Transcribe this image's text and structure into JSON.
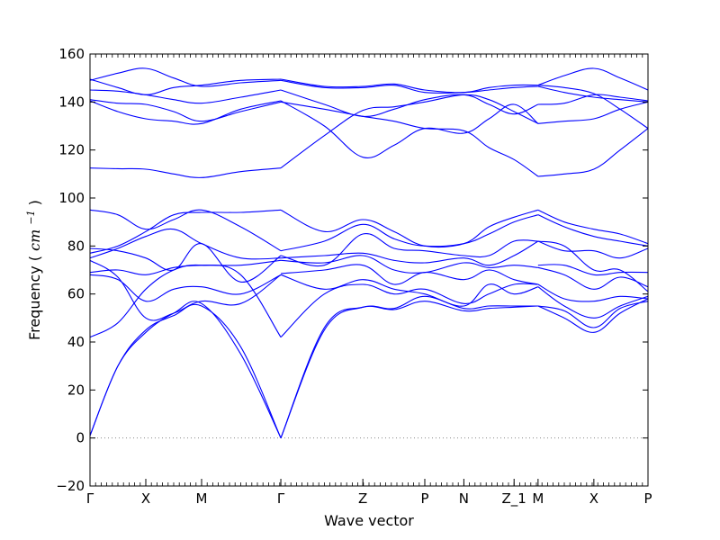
{
  "chart_data": {
    "type": "line",
    "title": "",
    "xlabel": "Wave vector",
    "ylabel": "Frequency",
    "ylabel_unit": "cm",
    "ylabel_unit_exp": "−1",
    "ylim": [
      -20,
      160
    ],
    "yticks": [
      -20,
      0,
      20,
      40,
      60,
      80,
      100,
      120,
      140,
      160
    ],
    "xlim": [
      0,
      1
    ],
    "grid": false,
    "zero_line": true,
    "line_color": "#0000ff",
    "zero_line_color": "#888888",
    "xticks": [
      {
        "label": "Γ",
        "x": 0.0
      },
      {
        "label": "X",
        "x": 0.1
      },
      {
        "label": "M",
        "x": 0.2
      },
      {
        "label": "Γ",
        "x": 0.342
      },
      {
        "label": "Z",
        "x": 0.489
      },
      {
        "label": "P",
        "x": 0.6
      },
      {
        "label": "N",
        "x": 0.67
      },
      {
        "label": "Z_1",
        "x": 0.76
      },
      {
        "label": "M",
        "x": 0.803
      },
      {
        "label": "X",
        "x": 0.903
      },
      {
        "label": "P",
        "x": 1.0
      }
    ],
    "series": [
      {
        "x": [
          0,
          0.05,
          0.1,
          0.15,
          0.2,
          0.27,
          0.342
        ],
        "values": [
          1,
          30,
          44,
          52,
          56,
          35,
          0
        ]
      },
      {
        "x": [
          0,
          0.05,
          0.1,
          0.15,
          0.2,
          0.27,
          0.342
        ],
        "values": [
          1,
          30,
          45,
          51,
          55,
          38,
          0
        ]
      },
      {
        "x": [
          0,
          0.05,
          0.1,
          0.15,
          0.2,
          0.27,
          0.342
        ],
        "values": [
          42,
          48,
          62,
          70,
          72,
          68,
          42
        ]
      },
      {
        "x": [
          0,
          0.05,
          0.1,
          0.15,
          0.2,
          0.27,
          0.342
        ],
        "values": [
          68,
          66,
          57,
          62,
          63,
          60,
          68
        ]
      },
      {
        "x": [
          0,
          0.05,
          0.1,
          0.15,
          0.2,
          0.27,
          0.342
        ],
        "values": [
          69,
          70,
          68,
          71,
          72,
          72,
          74
        ]
      },
      {
        "x": [
          0,
          0.05,
          0.1,
          0.15,
          0.2,
          0.27,
          0.342
        ],
        "values": [
          74,
          67,
          50,
          52,
          57,
          56,
          68
        ]
      },
      {
        "x": [
          0,
          0.05,
          0.1,
          0.15,
          0.2,
          0.27,
          0.342
        ],
        "values": [
          75,
          79,
          84,
          87,
          81,
          75,
          75
        ]
      },
      {
        "x": [
          0,
          0.05,
          0.1,
          0.15,
          0.2,
          0.27,
          0.342
        ],
        "values": [
          77,
          80,
          86,
          93,
          94,
          94,
          95
        ]
      },
      {
        "x": [
          0,
          0.05,
          0.1,
          0.15,
          0.2,
          0.27,
          0.342
        ],
        "values": [
          79,
          78,
          75,
          70,
          81,
          65,
          76
        ]
      },
      {
        "x": [
          0,
          0.05,
          0.1,
          0.15,
          0.2,
          0.27,
          0.342
        ],
        "values": [
          95,
          93,
          87,
          91,
          95,
          88,
          78
        ]
      },
      {
        "x": [
          0,
          0.05,
          0.1,
          0.15,
          0.2,
          0.27,
          0.342
        ],
        "values": [
          112.5,
          112.2,
          112,
          110,
          108.5,
          111,
          112.5
        ]
      },
      {
        "x": [
          0,
          0.05,
          0.1,
          0.15,
          0.2,
          0.27,
          0.342
        ],
        "values": [
          140.5,
          136,
          133,
          132,
          131,
          137,
          140.5
        ]
      },
      {
        "x": [
          0,
          0.05,
          0.1,
          0.15,
          0.2,
          0.27,
          0.342
        ],
        "values": [
          141,
          139.5,
          139,
          136,
          132,
          136,
          140
        ]
      },
      {
        "x": [
          0,
          0.05,
          0.1,
          0.15,
          0.2,
          0.27,
          0.342
        ],
        "values": [
          145,
          144.5,
          143,
          141,
          139.5,
          142,
          145
        ]
      },
      {
        "x": [
          0,
          0.05,
          0.1,
          0.15,
          0.2,
          0.27,
          0.342
        ],
        "values": [
          149,
          152,
          154,
          150,
          146.5,
          148,
          149
        ]
      },
      {
        "x": [
          0,
          0.05,
          0.1,
          0.15,
          0.2,
          0.27,
          0.342
        ],
        "values": [
          149.5,
          146,
          143,
          146,
          147,
          149,
          149.5
        ]
      },
      {
        "x": [
          0.342,
          0.42,
          0.489,
          0.545,
          0.6,
          0.67,
          0.715,
          0.76,
          0.803
        ],
        "values": [
          0,
          46,
          54.5,
          53.5,
          57,
          53,
          54,
          54.5,
          55
        ]
      },
      {
        "x": [
          0.342,
          0.42,
          0.489,
          0.545,
          0.6,
          0.67,
          0.715,
          0.76,
          0.803
        ],
        "values": [
          0,
          45,
          54.5,
          54,
          59,
          54,
          55,
          55,
          55
        ]
      },
      {
        "x": [
          0.342,
          0.42,
          0.489,
          0.545,
          0.6,
          0.67,
          0.715,
          0.76,
          0.803
        ],
        "values": [
          42,
          60,
          64,
          60,
          62,
          56,
          60,
          64,
          64
        ]
      },
      {
        "x": [
          0.342,
          0.42,
          0.489,
          0.545,
          0.6,
          0.67,
          0.715,
          0.76,
          0.803
        ],
        "values": [
          68,
          62,
          66,
          62,
          60,
          55,
          64,
          60,
          63
        ]
      },
      {
        "x": [
          0.342,
          0.42,
          0.489,
          0.545,
          0.6,
          0.67,
          0.715,
          0.76,
          0.803
        ],
        "values": [
          68.5,
          70,
          72,
          64,
          69,
          66,
          70,
          66,
          64
        ]
      },
      {
        "x": [
          0.342,
          0.42,
          0.489,
          0.545,
          0.6,
          0.67,
          0.715,
          0.76,
          0.803
        ],
        "values": [
          74,
          73,
          76,
          70,
          69,
          73,
          71,
          72,
          71
        ]
      },
      {
        "x": [
          0.342,
          0.42,
          0.489,
          0.545,
          0.6,
          0.67,
          0.715,
          0.76,
          0.803
        ],
        "values": [
          75,
          76,
          77,
          74,
          73,
          75,
          72,
          76,
          82
        ]
      },
      {
        "x": [
          0.342,
          0.42,
          0.489,
          0.545,
          0.6,
          0.67,
          0.715,
          0.76,
          0.803
        ],
        "values": [
          76,
          72,
          85,
          79,
          78,
          76,
          76,
          82,
          82
        ]
      },
      {
        "x": [
          0.342,
          0.42,
          0.489,
          0.545,
          0.6,
          0.67,
          0.715,
          0.76,
          0.803
        ],
        "values": [
          78,
          82,
          89,
          83,
          80,
          81,
          85,
          90,
          93
        ]
      },
      {
        "x": [
          0.342,
          0.42,
          0.489,
          0.545,
          0.6,
          0.67,
          0.715,
          0.76,
          0.803
        ],
        "values": [
          95,
          86,
          91,
          86,
          80,
          81,
          88,
          92,
          95
        ]
      },
      {
        "x": [
          0.342,
          0.42,
          0.489,
          0.545,
          0.6,
          0.67,
          0.715,
          0.76,
          0.803
        ],
        "values": [
          112.5,
          126,
          136.5,
          138,
          140,
          143,
          141,
          136,
          131
        ]
      },
      {
        "x": [
          0.342,
          0.42,
          0.489,
          0.545,
          0.6,
          0.67,
          0.715,
          0.76,
          0.803
        ],
        "values": [
          140.5,
          130,
          117,
          122,
          129,
          127,
          133,
          139,
          131
        ]
      },
      {
        "x": [
          0.342,
          0.42,
          0.489,
          0.545,
          0.6,
          0.67,
          0.715,
          0.76,
          0.803
        ],
        "values": [
          140,
          137,
          134,
          132,
          129,
          128,
          121,
          116,
          109
        ]
      },
      {
        "x": [
          0.342,
          0.42,
          0.489,
          0.545,
          0.6,
          0.67,
          0.715,
          0.76,
          0.803
        ],
        "values": [
          145,
          139,
          134,
          137,
          141,
          143,
          139,
          135,
          139
        ]
      },
      {
        "x": [
          0.342,
          0.42,
          0.489,
          0.545,
          0.6,
          0.67,
          0.715,
          0.76,
          0.803
        ],
        "values": [
          149,
          146,
          146,
          147,
          144,
          144,
          145,
          146,
          146.5
        ]
      },
      {
        "x": [
          0.342,
          0.42,
          0.489,
          0.545,
          0.6,
          0.67,
          0.715,
          0.76,
          0.803
        ],
        "values": [
          149.5,
          146.5,
          146.5,
          147.5,
          145,
          144,
          146,
          147,
          147
        ]
      },
      {
        "x": [
          0.803,
          0.85,
          0.903,
          0.95,
          1.0
        ],
        "values": [
          55,
          50,
          44,
          52,
          58
        ]
      },
      {
        "x": [
          0.803,
          0.85,
          0.903,
          0.95,
          1.0
        ],
        "values": [
          55,
          53,
          46,
          54,
          57
        ]
      },
      {
        "x": [
          0.803,
          0.85,
          0.903,
          0.95,
          1.0
        ],
        "values": [
          63,
          55,
          50,
          55,
          59
        ]
      },
      {
        "x": [
          0.803,
          0.85,
          0.903,
          0.95,
          1.0
        ],
        "values": [
          64,
          58,
          57,
          59,
          58
        ]
      },
      {
        "x": [
          0.803,
          0.85,
          0.903,
          0.95,
          1.0
        ],
        "values": [
          71,
          68,
          62,
          67,
          63
        ]
      },
      {
        "x": [
          0.803,
          0.85,
          0.903,
          0.95,
          1.0
        ],
        "values": [
          72,
          72,
          68,
          69,
          69
        ]
      },
      {
        "x": [
          0.803,
          0.85,
          0.903,
          0.95,
          1.0
        ],
        "values": [
          82,
          80,
          70,
          70,
          61
        ]
      },
      {
        "x": [
          0.803,
          0.85,
          0.903,
          0.95,
          1.0
        ],
        "values": [
          82,
          78,
          78,
          75,
          79
        ]
      },
      {
        "x": [
          0.803,
          0.85,
          0.903,
          0.95,
          1.0
        ],
        "values": [
          93,
          88,
          84,
          82,
          80
        ]
      },
      {
        "x": [
          0.803,
          0.85,
          0.903,
          0.95,
          1.0
        ],
        "values": [
          95,
          90,
          87,
          85,
          81
        ]
      },
      {
        "x": [
          0.803,
          0.85,
          0.903,
          0.95,
          1.0
        ],
        "values": [
          109,
          110,
          112,
          120,
          129
        ]
      },
      {
        "x": [
          0.803,
          0.85,
          0.903,
          0.95,
          1.0
        ],
        "values": [
          131,
          132,
          133,
          137,
          140
        ]
      },
      {
        "x": [
          0.803,
          0.85,
          0.903,
          0.95,
          1.0
        ],
        "values": [
          139,
          139.5,
          143,
          142,
          140.5
        ]
      },
      {
        "x": [
          0.803,
          0.85,
          0.903,
          0.95,
          1.0
        ],
        "values": [
          146.5,
          144,
          142,
          141,
          140
        ]
      },
      {
        "x": [
          0.803,
          0.85,
          0.903,
          0.95,
          1.0
        ],
        "values": [
          147,
          151,
          154,
          150,
          145
        ]
      },
      {
        "x": [
          0.803,
          0.85,
          0.903,
          0.95,
          1.0
        ],
        "values": [
          147,
          146,
          143.5,
          137,
          129
        ]
      }
    ]
  }
}
